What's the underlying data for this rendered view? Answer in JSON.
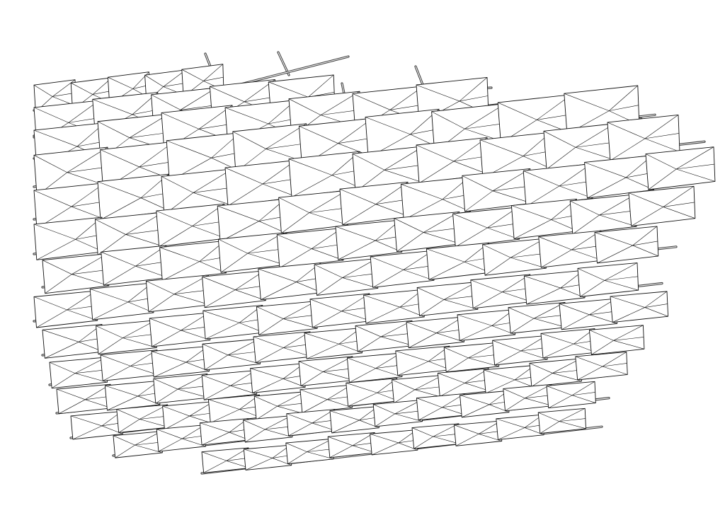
{
  "drawing": {
    "subject": "folded-panel-canopy-array",
    "background_color": "#ffffff",
    "line_color": "#111111",
    "rod_color": "#3a3a3a",
    "panel_fill": "#ffffff",
    "rows": 14
  }
}
